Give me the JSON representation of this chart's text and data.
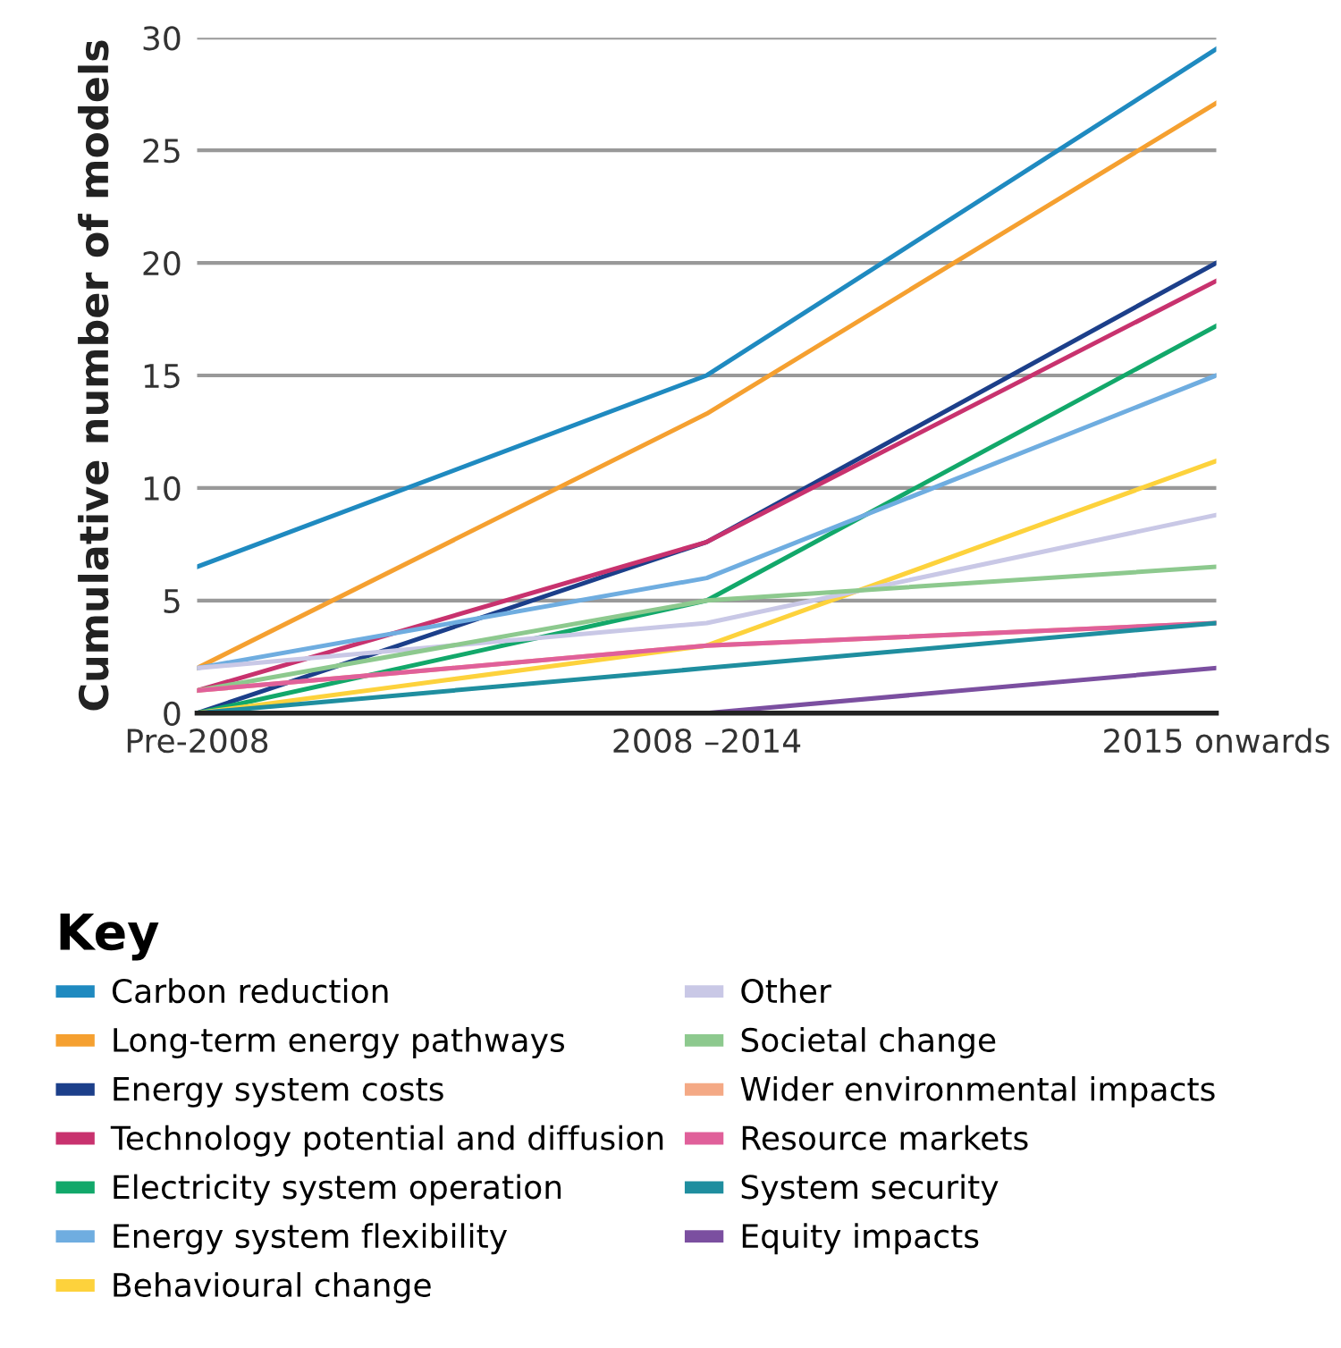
{
  "chart_data": {
    "type": "line",
    "ylabel": "Cumulative number of models",
    "legend_title": "Key",
    "legend": "bottom",
    "grid": "y",
    "marker": "none",
    "line_style": "solid",
    "categories": [
      "Pre-2008",
      "2008 –2014",
      "2015 onwards"
    ],
    "ylim": [
      0,
      30
    ],
    "yticks": [
      0,
      5,
      10,
      15,
      20,
      25,
      30
    ],
    "series": [
      {
        "name": "Carbon reduction",
        "color": "#1f8ac0",
        "values": [
          6.5,
          15,
          29.5
        ]
      },
      {
        "name": "Long-term energy pathways",
        "color": "#f5a030",
        "values": [
          2,
          13.3,
          27.1
        ]
      },
      {
        "name": "Energy system costs",
        "color": "#1c3f8a",
        "values": [
          0,
          7.6,
          20
        ]
      },
      {
        "name": "Technology potential and diffusion",
        "color": "#c8326e",
        "values": [
          1,
          7.6,
          19.2
        ]
      },
      {
        "name": "Electricity system operation",
        "color": "#12a86a",
        "values": [
          0,
          5,
          17.2
        ]
      },
      {
        "name": "Energy system flexibility",
        "color": "#6fade0",
        "values": [
          2,
          6,
          15
        ]
      },
      {
        "name": "Behavioural change",
        "color": "#fdd23c",
        "values": [
          0,
          3,
          11.2
        ]
      },
      {
        "name": "Other",
        "color": "#c9c8e6",
        "values": [
          2,
          4,
          8.8
        ]
      },
      {
        "name": "Societal change",
        "color": "#8dc98e",
        "values": [
          1,
          5,
          6.5
        ]
      },
      {
        "name": "Wider environmental impacts",
        "color": "#f4a985",
        "values": [
          1,
          3,
          4
        ]
      },
      {
        "name": "Resource markets",
        "color": "#e0609a",
        "values": [
          1,
          3,
          4
        ]
      },
      {
        "name": "System security",
        "color": "#1f8e9f",
        "values": [
          0,
          2,
          4
        ]
      },
      {
        "name": "Equity impacts",
        "color": "#7b4fa0",
        "values": [
          null,
          0,
          2
        ]
      }
    ]
  }
}
